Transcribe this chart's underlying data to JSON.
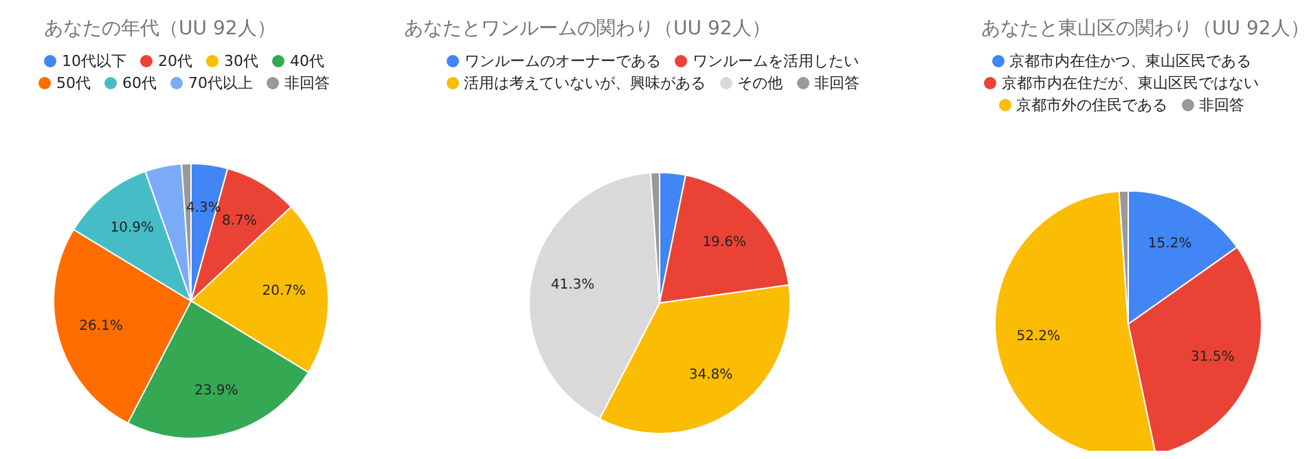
{
  "chart_data": [
    {
      "type": "pie",
      "title": "あなたの年代（UU 92人）",
      "legend": "top",
      "categories": [
        "10代以下",
        "20代",
        "30代",
        "40代",
        "50代",
        "60代",
        "70代以上",
        "非回答"
      ],
      "values": [
        4.3,
        8.7,
        20.7,
        23.9,
        26.1,
        10.9,
        4.3,
        1.1
      ],
      "colors": [
        "#4285f4",
        "#ea4335",
        "#fbbc04",
        "#34a853",
        "#ff6d01",
        "#46bdc6",
        "#7baaf7",
        "#999999"
      ],
      "value_labels": [
        "4.3%",
        "8.7%",
        "20.7%",
        "23.9%",
        "26.1%",
        "10.9%",
        null,
        null
      ]
    },
    {
      "type": "pie",
      "title": "あなたとワンルームの関わり（UU 92人）",
      "legend": "top",
      "categories": [
        "ワンルームのオーナーである",
        "ワンルームを活用したい",
        "活用は考えていないが、興味がある",
        "その他",
        "非回答"
      ],
      "values": [
        3.2,
        19.6,
        34.8,
        41.3,
        1.1
      ],
      "colors": [
        "#4285f4",
        "#ea4335",
        "#fbbc04",
        "#d9d9d9",
        "#999999"
      ],
      "value_labels": [
        null,
        "19.6%",
        "34.8%",
        "41.3%",
        null
      ]
    },
    {
      "type": "pie",
      "title": "あなたと東山区の関わり（UU 92人）",
      "legend": "top",
      "categories": [
        "京都市内在住かつ、東山区民である",
        "京都市内在住だが、東山区民ではない",
        "京都市外の住民である",
        "非回答"
      ],
      "values": [
        15.2,
        31.5,
        52.2,
        1.1
      ],
      "colors": [
        "#4285f4",
        "#ea4335",
        "#fbbc04",
        "#999999"
      ],
      "value_labels": [
        "15.2%",
        "31.5%",
        "52.2%",
        null
      ]
    }
  ]
}
